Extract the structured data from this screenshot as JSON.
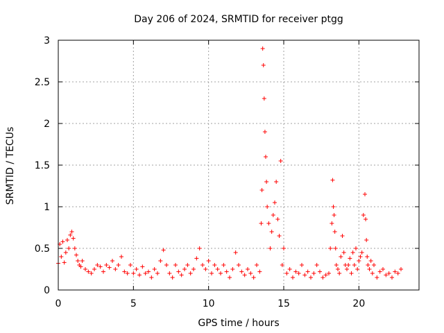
{
  "chart_data": {
    "type": "scatter",
    "title": "Day 206 of 2024, SRMTID for receiver ptgg",
    "xlabel": "GPS time / hours",
    "ylabel": "SRMTID / TECUs",
    "xlim": [
      0,
      24
    ],
    "ylim": [
      0,
      3
    ],
    "xticks": [
      0,
      5,
      10,
      15,
      20
    ],
    "yticks": [
      0,
      0.5,
      1,
      1.5,
      2,
      2.5,
      3
    ],
    "ytick_labels": [
      "0",
      "0.5",
      "1",
      "1.5",
      "2",
      "2.5",
      "3"
    ],
    "grid": true,
    "marker": "+",
    "color": "#ff0000",
    "series": [
      {
        "name": "SRMTID",
        "x": [
          0.0,
          0.1,
          0.2,
          0.3,
          0.4,
          0.5,
          0.6,
          0.7,
          0.8,
          0.9,
          1.0,
          1.1,
          1.2,
          1.3,
          1.4,
          1.5,
          1.6,
          1.8,
          2.0,
          2.2,
          2.4,
          2.6,
          2.8,
          3.0,
          3.2,
          3.4,
          3.6,
          3.8,
          4.0,
          4.2,
          4.4,
          4.6,
          4.8,
          5.0,
          5.2,
          5.4,
          5.6,
          5.8,
          6.0,
          6.2,
          6.4,
          6.6,
          6.8,
          7.0,
          7.2,
          7.4,
          7.6,
          7.8,
          8.0,
          8.2,
          8.4,
          8.6,
          8.8,
          9.0,
          9.2,
          9.4,
          9.6,
          9.8,
          10.0,
          10.2,
          10.4,
          10.6,
          10.8,
          11.0,
          11.2,
          11.4,
          11.6,
          11.8,
          12.0,
          12.2,
          12.4,
          12.6,
          12.8,
          13.0,
          13.2,
          13.4,
          13.5,
          13.55,
          13.6,
          13.65,
          13.7,
          13.75,
          13.8,
          13.85,
          13.9,
          14.0,
          14.1,
          14.2,
          14.3,
          14.4,
          14.5,
          14.6,
          14.7,
          14.8,
          14.9,
          15.0,
          15.2,
          15.4,
          15.6,
          15.8,
          16.0,
          16.2,
          16.4,
          16.6,
          16.8,
          17.0,
          17.2,
          17.4,
          17.6,
          17.8,
          18.0,
          18.1,
          18.2,
          18.25,
          18.3,
          18.35,
          18.4,
          18.45,
          18.5,
          18.6,
          18.7,
          18.8,
          18.9,
          19.0,
          19.1,
          19.2,
          19.3,
          19.4,
          19.5,
          19.6,
          19.7,
          19.8,
          19.9,
          20.0,
          20.1,
          20.2,
          20.3,
          20.4,
          20.45,
          20.5,
          20.55,
          20.6,
          20.7,
          20.8,
          20.9,
          21.0,
          21.2,
          21.4,
          21.6,
          21.8,
          22.0,
          22.2,
          22.4,
          22.6,
          22.8
        ],
        "y": [
          0.32,
          0.55,
          0.4,
          0.58,
          0.33,
          0.45,
          0.6,
          0.5,
          0.66,
          0.7,
          0.62,
          0.5,
          0.42,
          0.35,
          0.3,
          0.28,
          0.35,
          0.25,
          0.22,
          0.2,
          0.25,
          0.3,
          0.28,
          0.22,
          0.3,
          0.27,
          0.35,
          0.25,
          0.3,
          0.4,
          0.22,
          0.2,
          0.3,
          0.2,
          0.25,
          0.18,
          0.28,
          0.2,
          0.22,
          0.15,
          0.25,
          0.2,
          0.35,
          0.48,
          0.3,
          0.2,
          0.15,
          0.3,
          0.22,
          0.18,
          0.25,
          0.3,
          0.2,
          0.25,
          0.38,
          0.5,
          0.3,
          0.25,
          0.35,
          0.2,
          0.3,
          0.25,
          0.2,
          0.3,
          0.22,
          0.15,
          0.25,
          0.45,
          0.3,
          0.22,
          0.18,
          0.25,
          0.2,
          0.15,
          0.3,
          0.22,
          0.8,
          1.2,
          2.9,
          2.7,
          2.3,
          1.9,
          1.6,
          1.3,
          1.0,
          0.8,
          0.5,
          0.7,
          0.9,
          1.05,
          1.3,
          0.85,
          0.65,
          1.55,
          0.3,
          0.5,
          0.2,
          0.25,
          0.15,
          0.22,
          0.2,
          0.3,
          0.18,
          0.22,
          0.15,
          0.2,
          0.3,
          0.22,
          0.15,
          0.18,
          0.2,
          0.5,
          0.8,
          1.32,
          1.0,
          0.9,
          0.7,
          0.5,
          0.3,
          0.25,
          0.2,
          0.4,
          0.65,
          0.45,
          0.3,
          0.25,
          0.3,
          0.38,
          0.2,
          0.45,
          0.3,
          0.5,
          0.25,
          0.35,
          0.4,
          0.45,
          0.9,
          1.15,
          0.85,
          0.6,
          0.4,
          0.3,
          0.25,
          0.35,
          0.2,
          0.3,
          0.15,
          0.22,
          0.25,
          0.18,
          0.2,
          0.15,
          0.22,
          0.2,
          0.25
        ]
      }
    ]
  }
}
